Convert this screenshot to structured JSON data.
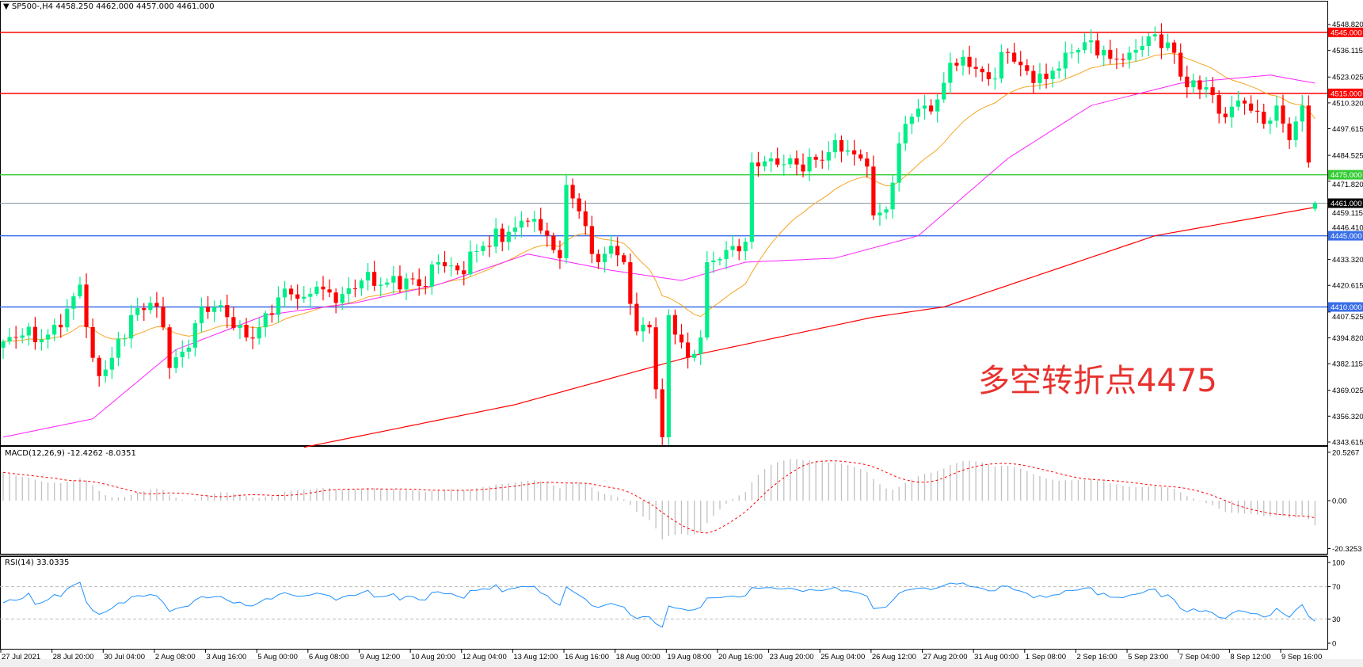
{
  "header": {
    "symbol": "SP500-,H4",
    "open": "4458.250",
    "high": "4462.000",
    "low": "4457.000",
    "close": "4461.000"
  },
  "annotation": "多空转折点4475",
  "macd_label": "MACD(12,26,9) -12.4262 -8.0351",
  "rsi_label": "RSI(14) 33.0335",
  "colors": {
    "bull": "#00ee88",
    "bear": "#ff0000",
    "ma_fast": "#f5a623",
    "ma_mid": "#ff22ff",
    "ma_slow": "#ff0000",
    "macd_hist": "#c0c0c0",
    "macd_signal": "#ff0000",
    "rsi": "#1e90ff",
    "level_red": "#ff0000",
    "level_green": "#33cc33",
    "level_blue": "#3a6ee8",
    "current": "#000000"
  },
  "chart_data": {
    "type": "candlestick",
    "timeframe": "H4",
    "price_axis": {
      "range": [
        4343.615,
        4548.82
      ],
      "ticks": [
        "4548.820",
        "4536.115",
        "4523.025",
        "4510.320",
        "4497.615",
        "4484.525",
        "4471.820",
        "4459.115",
        "4446.410",
        "4433.320",
        "4420.615",
        "4407.525",
        "4394.820",
        "4382.115",
        "4369.025",
        "4356.320",
        "4343.615"
      ]
    },
    "levels": [
      {
        "price": 4545,
        "label": "4545.000",
        "color": "red"
      },
      {
        "price": 4515,
        "label": "4515.000",
        "color": "red"
      },
      {
        "price": 4475,
        "label": "4475.000",
        "color": "green"
      },
      {
        "price": 4461,
        "label": "4461.000",
        "color": "current"
      },
      {
        "price": 4445,
        "label": "4445.000",
        "color": "blue"
      },
      {
        "price": 4410,
        "label": "4410.000",
        "color": "blue"
      }
    ],
    "time_labels": [
      "27 Jul 2021",
      "28 Jul 20:00",
      "30 Jul 04:00",
      "2 Aug 08:00",
      "3 Aug 16:00",
      "5 Aug 00:00",
      "6 Aug 08:00",
      "9 Aug 12:00",
      "10 Aug 20:00",
      "12 Aug 04:00",
      "13 Aug 12:00",
      "16 Aug 16:00",
      "18 Aug 00:00",
      "19 Aug 08:00",
      "20 Aug 16:00",
      "23 Aug 20:00",
      "25 Aug 04:00",
      "26 Aug 12:00",
      "27 Aug 20:00",
      "31 Aug 00:00",
      "1 Sep 08:00",
      "2 Sep 16:00",
      "5 Sep 23:00",
      "7 Sep 04:00",
      "8 Sep 12:00",
      "9 Sep 16:00"
    ],
    "bars_per_label": 8,
    "bar_count": 206,
    "close_keypoints": [
      [
        0,
        4393
      ],
      [
        3,
        4396
      ],
      [
        6,
        4394
      ],
      [
        9,
        4400
      ],
      [
        12,
        4421
      ],
      [
        14,
        4385
      ],
      [
        15,
        4376
      ],
      [
        17,
        4385
      ],
      [
        20,
        4406
      ],
      [
        23,
        4412
      ],
      [
        25,
        4400
      ],
      [
        26,
        4380
      ],
      [
        29,
        4390
      ],
      [
        31,
        4410
      ],
      [
        33,
        4410
      ],
      [
        35,
        4405
      ],
      [
        38,
        4395
      ],
      [
        40,
        4400
      ],
      [
        44,
        4419
      ],
      [
        47,
        4415
      ],
      [
        49,
        4420
      ],
      [
        52,
        4412
      ],
      [
        56,
        4423
      ],
      [
        60,
        4422
      ],
      [
        63,
        4424
      ],
      [
        66,
        4420
      ],
      [
        68,
        4432
      ],
      [
        71,
        4428
      ],
      [
        75,
        4440
      ],
      [
        80,
        4449
      ],
      [
        82,
        4452
      ],
      [
        85,
        4445
      ],
      [
        87,
        4434
      ],
      [
        88,
        4470
      ],
      [
        90,
        4457
      ],
      [
        93,
        4432
      ],
      [
        95,
        4440
      ],
      [
        97,
        4432
      ],
      [
        99,
        4398
      ],
      [
        101,
        4400
      ],
      [
        103,
        4346
      ],
      [
        104,
        4406
      ],
      [
        107,
        4385
      ],
      [
        109,
        4395
      ],
      [
        110,
        4432
      ],
      [
        113,
        4438
      ],
      [
        116,
        4442
      ],
      [
        117,
        4481
      ],
      [
        120,
        4483
      ],
      [
        124,
        4480
      ],
      [
        128,
        4482
      ],
      [
        130,
        4492
      ],
      [
        133,
        4485
      ],
      [
        135,
        4479
      ],
      [
        136,
        4455
      ],
      [
        138,
        4458
      ],
      [
        141,
        4500
      ],
      [
        144,
        4509
      ],
      [
        146,
        4512
      ],
      [
        148,
        4530
      ],
      [
        151,
        4528
      ],
      [
        154,
        4522
      ],
      [
        157,
        4535
      ],
      [
        160,
        4526
      ],
      [
        163,
        4522
      ],
      [
        166,
        4535
      ],
      [
        170,
        4541
      ],
      [
        173,
        4532
      ],
      [
        176,
        4535
      ],
      [
        179,
        4543
      ],
      [
        182,
        4540
      ],
      [
        185,
        4518
      ],
      [
        188,
        4518
      ],
      [
        190,
        4505
      ],
      [
        194,
        4510
      ],
      [
        197,
        4500
      ],
      [
        199,
        4509
      ],
      [
        201,
        4492
      ],
      [
        203,
        4509
      ],
      [
        204,
        4481
      ],
      [
        205,
        4461
      ]
    ],
    "last_bar": {
      "open": 4458.25,
      "high": 4462.0,
      "low": 4457.0,
      "close": 4461.0
    },
    "ma_mid_keypoints": [
      [
        0,
        4346
      ],
      [
        14,
        4355
      ],
      [
        27,
        4389
      ],
      [
        41,
        4406
      ],
      [
        55,
        4412
      ],
      [
        68,
        4421
      ],
      [
        82,
        4436
      ],
      [
        95,
        4428
      ],
      [
        106,
        4423
      ],
      [
        116,
        4432
      ],
      [
        130,
        4434
      ],
      [
        143,
        4445
      ],
      [
        157,
        4483
      ],
      [
        170,
        4509
      ],
      [
        184,
        4520
      ],
      [
        198,
        4524
      ],
      [
        205,
        4520
      ]
    ],
    "ma_slow_keypoints": [
      [
        47,
        4341
      ],
      [
        80,
        4362
      ],
      [
        109,
        4387
      ],
      [
        136,
        4405
      ],
      [
        147,
        4410
      ],
      [
        180,
        4445
      ],
      [
        205,
        4459
      ]
    ],
    "macd_axis": {
      "ticks": [
        "20.5267",
        "0.00",
        "-20.3253"
      ],
      "range": [
        -20.3253,
        20.5267
      ]
    },
    "rsi_axis": {
      "ticks": [
        "100",
        "70",
        "30",
        "0"
      ],
      "levels": [
        70,
        30
      ]
    }
  }
}
